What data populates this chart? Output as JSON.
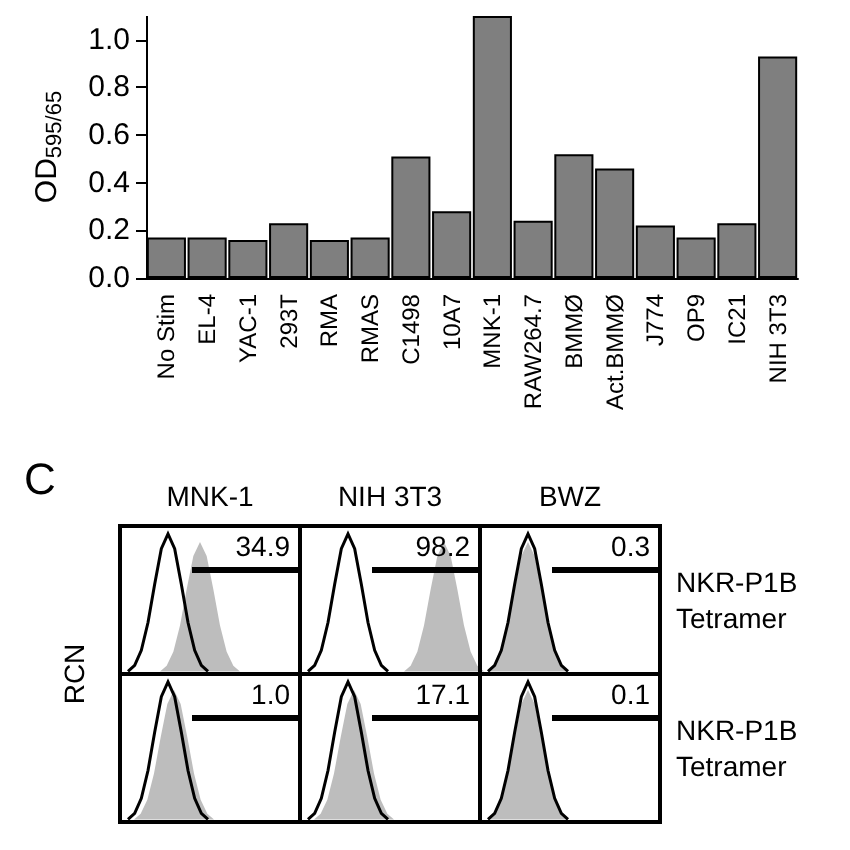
{
  "chart_data": [
    {
      "type": "bar",
      "ylabel": "OD$_{595/65}$",
      "categories": [
        "No Stim",
        "EL-4",
        "YAC-1",
        "293T",
        "RMA",
        "RMAS",
        "C1498",
        "10A7",
        "MNK-1",
        "RAW264.7",
        "BMMØ",
        "Act.BMMØ",
        "J774",
        "OP9",
        "IC21",
        "NIH 3T3"
      ],
      "values": [
        0.17,
        0.17,
        0.16,
        0.23,
        0.16,
        0.17,
        0.51,
        0.28,
        1.1,
        0.24,
        0.52,
        0.46,
        0.22,
        0.17,
        0.23,
        0.93
      ],
      "color": "#7f7f7f",
      "ylim": [
        0,
        1.1
      ],
      "yticks": [
        {
          "value": 0,
          "label": "0.0"
        },
        0.2,
        0.4,
        0.6,
        0.8,
        {
          "value": 1,
          "label": "1.0"
        }
      ],
      "grid": false
    },
    {
      "type": "other",
      "title": "C",
      "ylabel": "RCN",
      "categories": [
        "MNK-1",
        "NIH 3T3",
        "BWZ"
      ],
      "y2_categories": [
        "NKR-P1B\nTetramer",
        "NKR-P1B\nTetramer"
      ],
      "annotations": [
        "34.9",
        "98.2",
        "0.3",
        "1.0",
        "17.1",
        "0.1"
      ]
    }
  ]
}
